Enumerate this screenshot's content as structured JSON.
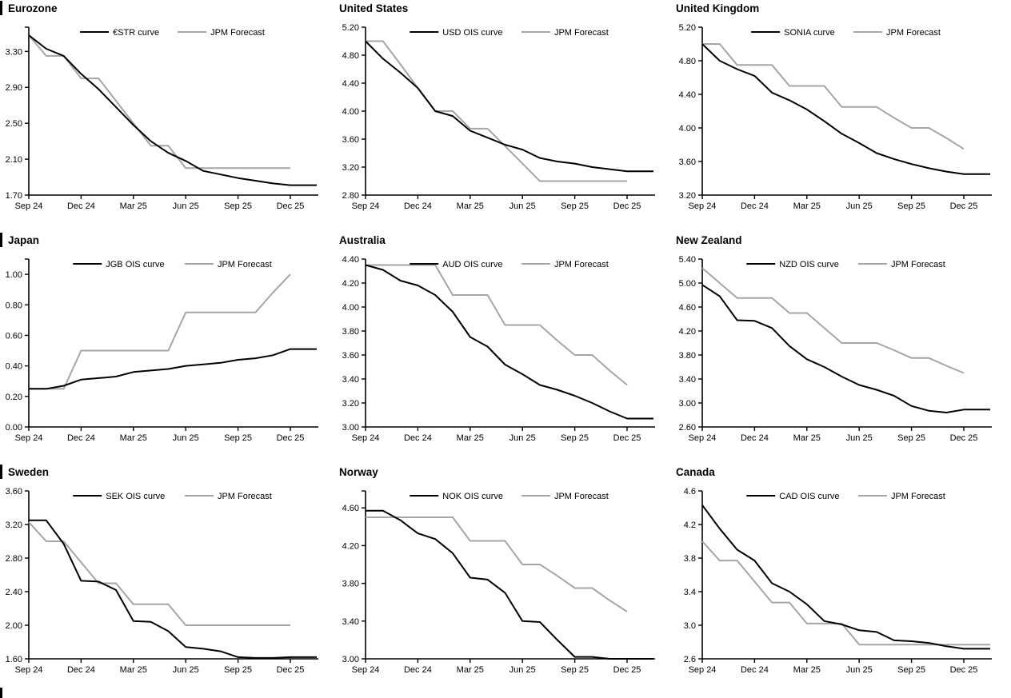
{
  "page": {
    "background": "#ffffff"
  },
  "colors": {
    "curve": "#000000",
    "forecast": "#a6a6a6",
    "axis": "#000000",
    "text": "#000000"
  },
  "legend": {
    "position": "top-center",
    "forecast_label": "JPM Forecast"
  },
  "x_axis": {
    "frequency": "monthly",
    "start": "Sep 24",
    "end": "Dec 25",
    "tick_labels": [
      "Sep 24",
      "Dec 24",
      "Mar 25",
      "Jun 25",
      "Sep 25",
      "Dec 25"
    ],
    "tick_months": [
      0,
      3,
      6,
      9,
      12,
      15
    ]
  },
  "chart_data": [
    {
      "type": "line",
      "title": "Eurozone",
      "section_marker": true,
      "ylim": [
        1.7,
        3.57
      ],
      "grid": false,
      "top_tick": true,
      "y_ticks": [
        {
          "label": "3.30",
          "value": 3.3
        },
        {
          "label": "2.90",
          "value": 2.9
        },
        {
          "label": "2.50",
          "value": 2.5
        },
        {
          "label": "2.10",
          "value": 2.1
        },
        {
          "label": "1.70",
          "value": 1.7
        }
      ],
      "series": [
        {
          "name": "€STR curve",
          "role": "curve",
          "extends": true,
          "values": [
            3.48,
            3.33,
            3.25,
            3.05,
            2.88,
            2.68,
            2.48,
            2.3,
            2.17,
            2.08,
            1.97,
            1.93,
            1.89,
            1.86,
            1.83,
            1.81
          ]
        },
        {
          "name": "JPM Forecast",
          "role": "forecast",
          "extends": false,
          "values": [
            3.48,
            3.25,
            3.25,
            3.0,
            3.0,
            2.75,
            2.5,
            2.25,
            2.25,
            2.0,
            2.0,
            2.0,
            2.0,
            2.0,
            2.0,
            2.0
          ]
        }
      ]
    },
    {
      "type": "line",
      "title": "United States",
      "section_marker": false,
      "ylim": [
        2.8,
        5.2
      ],
      "grid": false,
      "top_tick": false,
      "y_ticks": [
        {
          "label": "5.20",
          "value": 5.2
        },
        {
          "label": "4.80",
          "value": 4.8
        },
        {
          "label": "4.40",
          "value": 4.4
        },
        {
          "label": "4.00",
          "value": 4.0
        },
        {
          "label": "3.60",
          "value": 3.6
        },
        {
          "label": "3.20",
          "value": 3.2
        },
        {
          "label": "2.80",
          "value": 2.8
        }
      ],
      "series": [
        {
          "name": "USD OIS curve",
          "role": "curve",
          "extends": true,
          "values": [
            5.0,
            4.75,
            4.55,
            4.33,
            4.0,
            3.93,
            3.72,
            3.62,
            3.52,
            3.45,
            3.33,
            3.28,
            3.25,
            3.2,
            3.17,
            3.14
          ]
        },
        {
          "name": "JPM Forecast",
          "role": "forecast",
          "extends": false,
          "values": [
            5.0,
            5.0,
            4.67,
            4.33,
            4.0,
            4.0,
            3.75,
            3.75,
            3.5,
            3.25,
            3.0,
            3.0,
            3.0,
            3.0,
            3.0,
            3.0
          ]
        }
      ]
    },
    {
      "type": "line",
      "title": "United Kingdom",
      "section_marker": false,
      "ylim": [
        3.2,
        5.2
      ],
      "grid": false,
      "top_tick": false,
      "y_ticks": [
        {
          "label": "5.20",
          "value": 5.2
        },
        {
          "label": "4.80",
          "value": 4.8
        },
        {
          "label": "4.40",
          "value": 4.4
        },
        {
          "label": "4.00",
          "value": 4.0
        },
        {
          "label": "3.60",
          "value": 3.6
        },
        {
          "label": "3.20",
          "value": 3.2
        }
      ],
      "series": [
        {
          "name": "SONIA curve",
          "role": "curve",
          "extends": true,
          "values": [
            5.0,
            4.8,
            4.7,
            4.62,
            4.42,
            4.33,
            4.22,
            4.08,
            3.93,
            3.82,
            3.7,
            3.63,
            3.57,
            3.52,
            3.48,
            3.45
          ]
        },
        {
          "name": "JPM Forecast",
          "role": "forecast",
          "extends": false,
          "values": [
            5.0,
            5.0,
            4.75,
            4.75,
            4.75,
            4.5,
            4.5,
            4.5,
            4.25,
            4.25,
            4.25,
            4.12,
            4.0,
            4.0,
            3.88,
            3.75
          ]
        }
      ]
    },
    {
      "type": "line",
      "title": "Japan",
      "section_marker": true,
      "ylim": [
        0.0,
        1.1
      ],
      "grid": false,
      "top_tick": true,
      "y_ticks": [
        {
          "label": "1.00",
          "value": 1.0
        },
        {
          "label": "0.80",
          "value": 0.8
        },
        {
          "label": "0.60",
          "value": 0.6
        },
        {
          "label": "0.40",
          "value": 0.4
        },
        {
          "label": "0.20",
          "value": 0.2
        },
        {
          "label": "0.00",
          "value": 0.0
        }
      ],
      "series": [
        {
          "name": "JGB OIS curve",
          "role": "curve",
          "extends": true,
          "values": [
            0.25,
            0.25,
            0.27,
            0.31,
            0.32,
            0.33,
            0.36,
            0.37,
            0.38,
            0.4,
            0.41,
            0.42,
            0.44,
            0.45,
            0.47,
            0.51
          ]
        },
        {
          "name": "JPM Forecast",
          "role": "forecast",
          "extends": false,
          "values": [
            0.25,
            0.25,
            0.25,
            0.5,
            0.5,
            0.5,
            0.5,
            0.5,
            0.5,
            0.75,
            0.75,
            0.75,
            0.75,
            0.75,
            0.88,
            1.0
          ]
        }
      ]
    },
    {
      "type": "line",
      "title": "Australia",
      "section_marker": false,
      "ylim": [
        3.0,
        4.4
      ],
      "grid": false,
      "top_tick": false,
      "y_ticks": [
        {
          "label": "4.40",
          "value": 4.4
        },
        {
          "label": "4.20",
          "value": 4.2
        },
        {
          "label": "4.00",
          "value": 4.0
        },
        {
          "label": "3.80",
          "value": 3.8
        },
        {
          "label": "3.60",
          "value": 3.6
        },
        {
          "label": "3.40",
          "value": 3.4
        },
        {
          "label": "3.20",
          "value": 3.2
        },
        {
          "label": "3.00",
          "value": 3.0
        }
      ],
      "series": [
        {
          "name": "AUD OIS curve",
          "role": "curve",
          "extends": true,
          "values": [
            4.35,
            4.31,
            4.22,
            4.18,
            4.1,
            3.96,
            3.75,
            3.67,
            3.52,
            3.44,
            3.35,
            3.31,
            3.26,
            3.2,
            3.13,
            3.07
          ]
        },
        {
          "name": "JPM Forecast",
          "role": "forecast",
          "extends": false,
          "values": [
            4.35,
            4.35,
            4.35,
            4.35,
            4.35,
            4.1,
            4.1,
            4.1,
            3.85,
            3.85,
            3.85,
            3.72,
            3.6,
            3.6,
            3.47,
            3.35
          ]
        }
      ]
    },
    {
      "type": "line",
      "title": "New Zealand",
      "section_marker": false,
      "ylim": [
        2.6,
        5.4
      ],
      "grid": false,
      "top_tick": false,
      "y_ticks": [
        {
          "label": "5.40",
          "value": 5.4
        },
        {
          "label": "5.00",
          "value": 5.0
        },
        {
          "label": "4.60",
          "value": 4.6
        },
        {
          "label": "4.20",
          "value": 4.2
        },
        {
          "label": "3.80",
          "value": 3.8
        },
        {
          "label": "3.40",
          "value": 3.4
        },
        {
          "label": "3.00",
          "value": 3.0
        },
        {
          "label": "2.60",
          "value": 2.6
        }
      ],
      "series": [
        {
          "name": "NZD OIS curve",
          "role": "curve",
          "extends": true,
          "values": [
            4.97,
            4.78,
            4.38,
            4.37,
            4.25,
            3.95,
            3.73,
            3.6,
            3.44,
            3.3,
            3.22,
            3.12,
            2.95,
            2.87,
            2.84,
            2.89
          ]
        },
        {
          "name": "JPM Forecast",
          "role": "forecast",
          "extends": false,
          "values": [
            5.25,
            5.0,
            4.75,
            4.75,
            4.75,
            4.5,
            4.5,
            4.25,
            4.0,
            4.0,
            4.0,
            3.88,
            3.75,
            3.75,
            3.62,
            3.5
          ]
        }
      ]
    },
    {
      "type": "line",
      "title": "Sweden",
      "section_marker": true,
      "ylim": [
        1.6,
        3.6
      ],
      "grid": false,
      "top_tick": false,
      "y_ticks": [
        {
          "label": "3.60",
          "value": 3.6
        },
        {
          "label": "3.20",
          "value": 3.2
        },
        {
          "label": "2.80",
          "value": 2.8
        },
        {
          "label": "2.40",
          "value": 2.4
        },
        {
          "label": "2.00",
          "value": 2.0
        },
        {
          "label": "1.60",
          "value": 1.6
        }
      ],
      "series": [
        {
          "name": "SEK OIS curve",
          "role": "curve",
          "extends": true,
          "values": [
            3.25,
            3.25,
            2.97,
            2.53,
            2.52,
            2.42,
            2.05,
            2.04,
            1.93,
            1.74,
            1.72,
            1.69,
            1.62,
            1.61,
            1.61,
            1.62
          ]
        },
        {
          "name": "JPM Forecast",
          "role": "forecast",
          "extends": false,
          "values": [
            3.23,
            3.0,
            3.0,
            2.75,
            2.5,
            2.5,
            2.25,
            2.25,
            2.25,
            2.0,
            2.0,
            2.0,
            2.0,
            2.0,
            2.0,
            2.0
          ]
        }
      ]
    },
    {
      "type": "line",
      "title": "Norway",
      "section_marker": false,
      "ylim": [
        3.0,
        4.78
      ],
      "grid": false,
      "top_tick": true,
      "y_ticks": [
        {
          "label": "4.60",
          "value": 4.6
        },
        {
          "label": "4.20",
          "value": 4.2
        },
        {
          "label": "3.80",
          "value": 3.8
        },
        {
          "label": "3.40",
          "value": 3.4
        },
        {
          "label": "3.00",
          "value": 3.0
        }
      ],
      "series": [
        {
          "name": "NOK OIS curve",
          "role": "curve",
          "extends": true,
          "values": [
            4.57,
            4.57,
            4.47,
            4.33,
            4.27,
            4.12,
            3.86,
            3.84,
            3.7,
            3.4,
            3.39,
            3.2,
            3.02,
            3.02,
            3.0,
            3.0
          ]
        },
        {
          "name": "JPM Forecast",
          "role": "forecast",
          "extends": false,
          "values": [
            4.5,
            4.5,
            4.5,
            4.5,
            4.5,
            4.5,
            4.25,
            4.25,
            4.25,
            4.0,
            4.0,
            3.88,
            3.75,
            3.75,
            3.62,
            3.5
          ]
        }
      ]
    },
    {
      "type": "line",
      "title": "Canada",
      "section_marker": false,
      "ylim": [
        2.6,
        4.6
      ],
      "grid": false,
      "top_tick": false,
      "y_ticks": [
        {
          "label": "4.6",
          "value": 4.6
        },
        {
          "label": "4.2",
          "value": 4.2
        },
        {
          "label": "3.8",
          "value": 3.8
        },
        {
          "label": "3.4",
          "value": 3.4
        },
        {
          "label": "3.0",
          "value": 3.0
        },
        {
          "label": "2.6",
          "value": 2.6
        }
      ],
      "series": [
        {
          "name": "CAD OIS curve",
          "role": "curve",
          "extends": true,
          "values": [
            4.43,
            4.15,
            3.9,
            3.77,
            3.5,
            3.4,
            3.25,
            3.05,
            3.01,
            2.94,
            2.92,
            2.82,
            2.81,
            2.79,
            2.75,
            2.72
          ]
        },
        {
          "name": "JPM Forecast",
          "role": "forecast",
          "extends": true,
          "values": [
            4.0,
            3.77,
            3.77,
            3.52,
            3.27,
            3.27,
            3.02,
            3.02,
            3.02,
            2.77,
            2.77,
            2.77,
            2.77,
            2.77,
            2.77,
            2.77
          ]
        }
      ]
    }
  ]
}
